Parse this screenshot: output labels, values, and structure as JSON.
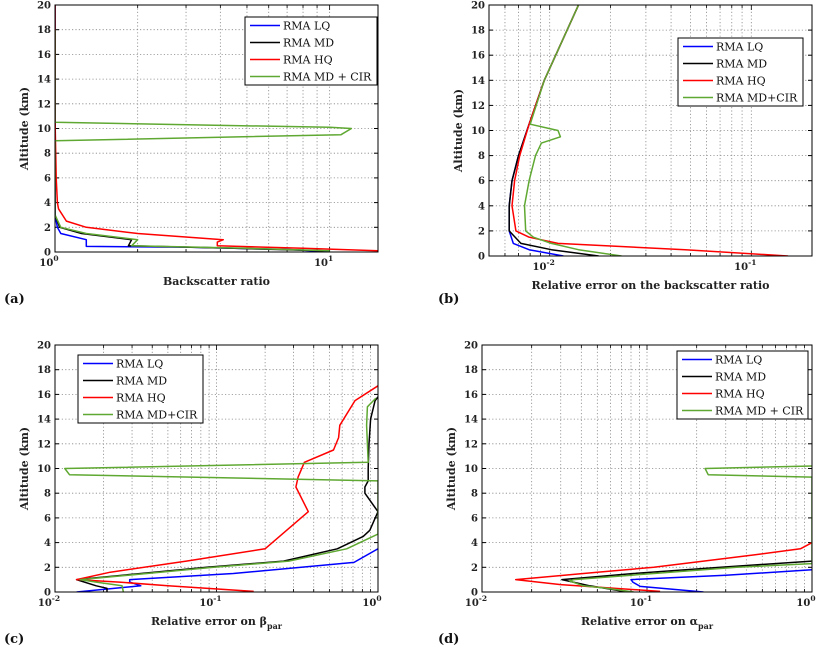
{
  "chart_data": [
    {
      "type": "line",
      "panel_label": "(a)",
      "xlabel": "Backscatter ratio",
      "xlabel_sub": "",
      "ylabel": "Altitude (km)",
      "xscale": "log",
      "xlim": [
        1,
        15
      ],
      "ylim": [
        0,
        20
      ],
      "xticks": [
        {
          "base": "10",
          "exp": "0",
          "value": 1
        },
        {
          "base": "10",
          "exp": "1",
          "value": 10
        }
      ],
      "yticks": [
        "0",
        "2",
        "4",
        "6",
        "8",
        "10",
        "12",
        "14",
        "16",
        "18",
        "20"
      ],
      "grid": true,
      "legend_position": "top-right",
      "series": [
        {
          "name": "RMA LQ",
          "color": "#0000ff",
          "points": [
            [
              1.0,
              20
            ],
            [
              1.0,
              3
            ],
            [
              1.02,
              2
            ],
            [
              1.05,
              1.5
            ],
            [
              1.3,
              1.0
            ],
            [
              1.3,
              0.5
            ],
            [
              1.3,
              0.45
            ],
            [
              2.97,
              0.4
            ],
            [
              7.1,
              0.2
            ],
            [
              10,
              0.02
            ]
          ]
        },
        {
          "name": "RMA MD",
          "color": "#000000",
          "points": [
            [
              1.0,
              20
            ],
            [
              1.0,
              3
            ],
            [
              1.04,
              2
            ],
            [
              1.25,
              1.5
            ],
            [
              1.9,
              1.0
            ],
            [
              1.85,
              0.5
            ],
            [
              4.5,
              0.3
            ],
            [
              9.5,
              0.1
            ]
          ]
        },
        {
          "name": "RMA HQ",
          "color": "#ff0000",
          "points": [
            [
              1.0,
              20
            ],
            [
              1.0,
              11
            ],
            [
              1.01,
              6
            ],
            [
              1.02,
              4
            ],
            [
              1.03,
              3.5
            ],
            [
              1.1,
              2.5
            ],
            [
              1.3,
              2
            ],
            [
              2.0,
              1.5
            ],
            [
              4.1,
              1.0
            ],
            [
              3.9,
              0.8
            ],
            [
              3.9,
              0.5
            ],
            [
              8,
              0.3
            ],
            [
              15,
              0.1
            ]
          ]
        },
        {
          "name": "RMA MD + CIR",
          "color": "#5fa832",
          "points": [
            [
              1.0,
              18
            ],
            [
              1.0,
              10.5
            ],
            [
              10,
              10.1
            ],
            [
              12,
              10.0
            ],
            [
              11,
              9.5
            ],
            [
              1.0,
              9.0
            ],
            [
              1.0,
              3
            ],
            [
              1.05,
              2
            ],
            [
              1.3,
              1.5
            ],
            [
              2.0,
              1.0
            ],
            [
              1.9,
              0.5
            ],
            [
              5,
              0.3
            ],
            [
              10,
              0.1
            ]
          ]
        }
      ]
    },
    {
      "type": "line",
      "panel_label": "(b)",
      "xlabel": "Relative error on the backscatter ratio",
      "xlabel_sub": "",
      "ylabel": "Altitude (km)",
      "xscale": "log",
      "xlim": [
        0.005,
        0.2
      ],
      "ylim": [
        0,
        20
      ],
      "xticks": [
        {
          "base": "10",
          "exp": "-2",
          "value": 0.01
        },
        {
          "base": "10",
          "exp": "-1",
          "value": 0.1
        }
      ],
      "yticks": [
        "0",
        "2",
        "4",
        "6",
        "8",
        "10",
        "12",
        "14",
        "16",
        "18",
        "20"
      ],
      "grid": true,
      "legend_position": "top-right",
      "series": [
        {
          "name": "RMA LQ",
          "color": "#0000ff",
          "points": [
            [
              0.0139,
              20
            ],
            [
              0.0094,
              14
            ],
            [
              0.0079,
              10.5
            ],
            [
              0.007,
              8
            ],
            [
              0.0065,
              6
            ],
            [
              0.0063,
              4
            ],
            [
              0.0063,
              2
            ],
            [
              0.0066,
              1
            ],
            [
              0.0079,
              0.5
            ],
            [
              0.0117,
              0
            ]
          ]
        },
        {
          "name": "RMA MD",
          "color": "#000000",
          "points": [
            [
              0.0139,
              20
            ],
            [
              0.0094,
              14
            ],
            [
              0.0079,
              10.5
            ],
            [
              0.007,
              8
            ],
            [
              0.0065,
              6
            ],
            [
              0.0063,
              4
            ],
            [
              0.0063,
              2
            ],
            [
              0.0072,
              1
            ],
            [
              0.0102,
              0.5
            ],
            [
              0.0175,
              0
            ]
          ]
        },
        {
          "name": "RMA HQ",
          "color": "#ff0000",
          "points": [
            [
              0.0139,
              20
            ],
            [
              0.0094,
              14
            ],
            [
              0.0079,
              10.5
            ],
            [
              0.0071,
              8
            ],
            [
              0.0067,
              6
            ],
            [
              0.0065,
              4
            ],
            [
              0.0068,
              2
            ],
            [
              0.0079,
              1.5
            ],
            [
              0.011,
              1.0
            ],
            [
              0.047,
              0.5
            ],
            [
              0.152,
              0
            ]
          ]
        },
        {
          "name": "RMA MD+CIR",
          "color": "#5fa832",
          "points": [
            [
              0.0139,
              20
            ],
            [
              0.0094,
              14
            ],
            [
              0.008,
              10.5
            ],
            [
              0.011,
              10
            ],
            [
              0.0113,
              9.5
            ],
            [
              0.0091,
              9
            ],
            [
              0.0085,
              8
            ],
            [
              0.0079,
              6
            ],
            [
              0.0075,
              4
            ],
            [
              0.0076,
              2
            ],
            [
              0.0083,
              1.5
            ],
            [
              0.0102,
              1
            ],
            [
              0.0139,
              0.5
            ],
            [
              0.0227,
              0
            ]
          ]
        }
      ]
    },
    {
      "type": "line",
      "panel_label": "(c)",
      "xlabel": "Relative error on β",
      "xlabel_sub": "par",
      "ylabel": "Altitude (km)",
      "xscale": "log",
      "xlim": [
        0.01,
        1
      ],
      "ylim": [
        0,
        20
      ],
      "xticks": [
        {
          "base": "10",
          "exp": "-2",
          "value": 0.01
        },
        {
          "base": "10",
          "exp": "-1",
          "value": 0.1
        },
        {
          "base": "10",
          "exp": "0",
          "value": 1
        }
      ],
      "yticks": [
        "0",
        "2",
        "4",
        "6",
        "8",
        "10",
        "12",
        "14",
        "16",
        "18",
        "20"
      ],
      "grid": true,
      "legend_position": "top-left",
      "series": [
        {
          "name": "RMA LQ",
          "color": "#0000ff",
          "points": [
            [
              0.0136,
              0
            ],
            [
              0.034,
              0.5
            ],
            [
              0.029,
              0.8
            ],
            [
              0.029,
              1.0
            ],
            [
              0.127,
              1.5
            ],
            [
              0.71,
              2.4
            ],
            [
              1.0,
              3.5
            ]
          ]
        },
        {
          "name": "RMA MD",
          "color": "#000000",
          "points": [
            [
              0.021,
              0
            ],
            [
              0.021,
              0.3
            ],
            [
              0.018,
              0.5
            ],
            [
              0.0136,
              1.0
            ],
            [
              0.034,
              1.5
            ],
            [
              0.087,
              2.0
            ],
            [
              0.26,
              2.5
            ],
            [
              0.56,
              3.5
            ],
            [
              0.81,
              4.5
            ],
            [
              0.89,
              5.0
            ],
            [
              1.0,
              6.5
            ],
            [
              0.83,
              8
            ],
            [
              0.83,
              8.5
            ],
            [
              0.87,
              9
            ],
            [
              0.87,
              10
            ],
            [
              0.88,
              12
            ],
            [
              0.9,
              14
            ],
            [
              0.96,
              15.5
            ],
            [
              1.0,
              15.8
            ]
          ]
        },
        {
          "name": "RMA HQ",
          "color": "#ff0000",
          "points": [
            [
              0.17,
              0.05
            ],
            [
              0.05,
              0.5
            ],
            [
              0.025,
              0.8
            ],
            [
              0.0136,
              1.0
            ],
            [
              0.022,
              1.6
            ],
            [
              0.065,
              2.5
            ],
            [
              0.2,
              3.5
            ],
            [
              0.37,
              6.5
            ],
            [
              0.31,
              8.5
            ],
            [
              0.32,
              9.3
            ],
            [
              0.35,
              10.5
            ],
            [
              0.53,
              11.5
            ],
            [
              0.57,
              12.5
            ],
            [
              0.58,
              13.5
            ],
            [
              0.72,
              15.5
            ],
            [
              1.0,
              16.7
            ]
          ]
        },
        {
          "name": "RMA MD+CIR",
          "color": "#5fa832",
          "points": [
            [
              0.0265,
              0
            ],
            [
              0.026,
              0.5
            ],
            [
              0.018,
              0.8
            ],
            [
              0.0143,
              1.0
            ],
            [
              0.037,
              1.5
            ],
            [
              0.096,
              2
            ],
            [
              0.28,
              2.5
            ],
            [
              0.64,
              3.5
            ],
            [
              1.0,
              4.7
            ],
            [
              1.0,
              9.0
            ],
            [
              0.0123,
              9.5
            ],
            [
              0.0115,
              10.0
            ],
            [
              0.87,
              10.5
            ],
            [
              0.85,
              13.5
            ],
            [
              0.86,
              15
            ],
            [
              0.97,
              15.7
            ]
          ]
        }
      ]
    },
    {
      "type": "line",
      "panel_label": "(d)",
      "xlabel": "Relative error on α",
      "xlabel_sub": "par",
      "ylabel": "Altitude (km)",
      "xscale": "log",
      "xlim": [
        0.01,
        1
      ],
      "ylim": [
        0,
        20
      ],
      "xticks": [
        {
          "base": "10",
          "exp": "-2",
          "value": 0.01
        },
        {
          "base": "10",
          "exp": "-1",
          "value": 0.1
        },
        {
          "base": "10",
          "exp": "0",
          "value": 1
        }
      ],
      "yticks": [
        "0",
        "2",
        "4",
        "6",
        "8",
        "10",
        "12",
        "14",
        "16",
        "18",
        "20"
      ],
      "grid": true,
      "legend_position": "top-right",
      "series": [
        {
          "name": "RMA LQ",
          "color": "#0000ff",
          "points": [
            [
              0.22,
              0
            ],
            [
              0.091,
              0.45
            ],
            [
              0.082,
              0.8
            ],
            [
              0.08,
              1.0
            ],
            [
              0.3,
              1.35
            ],
            [
              1.0,
              1.8
            ]
          ]
        },
        {
          "name": "RMA MD",
          "color": "#000000",
          "points": [
            [
              0.076,
              0
            ],
            [
              0.045,
              0.5
            ],
            [
              0.0305,
              1.0
            ],
            [
              0.083,
              1.5
            ],
            [
              0.28,
              2.0
            ],
            [
              1.0,
              2.5
            ]
          ]
        },
        {
          "name": "RMA HQ",
          "color": "#ff0000",
          "points": [
            [
              0.12,
              0.05
            ],
            [
              0.03,
              0.6
            ],
            [
              0.016,
              1.0
            ],
            [
              0.05,
              1.6
            ],
            [
              0.11,
              2.0
            ],
            [
              0.44,
              3.0
            ],
            [
              0.85,
              3.5
            ],
            [
              1.0,
              4.0
            ]
          ]
        },
        {
          "name": "RMA MD + CIR",
          "color": "#5fa832",
          "points": [
            [
              0.083,
              0
            ],
            [
              0.057,
              0.3
            ],
            [
              0.041,
              0.5
            ],
            [
              0.034,
              0.9
            ],
            [
              0.036,
              1.0
            ],
            [
              0.11,
              1.5
            ],
            [
              0.35,
              2.0
            ],
            [
              1.0,
              2.3
            ],
            [
              1.0,
              9.3
            ],
            [
              0.235,
              9.5
            ],
            [
              0.225,
              10.0
            ],
            [
              1.0,
              10.2
            ]
          ]
        }
      ]
    }
  ]
}
